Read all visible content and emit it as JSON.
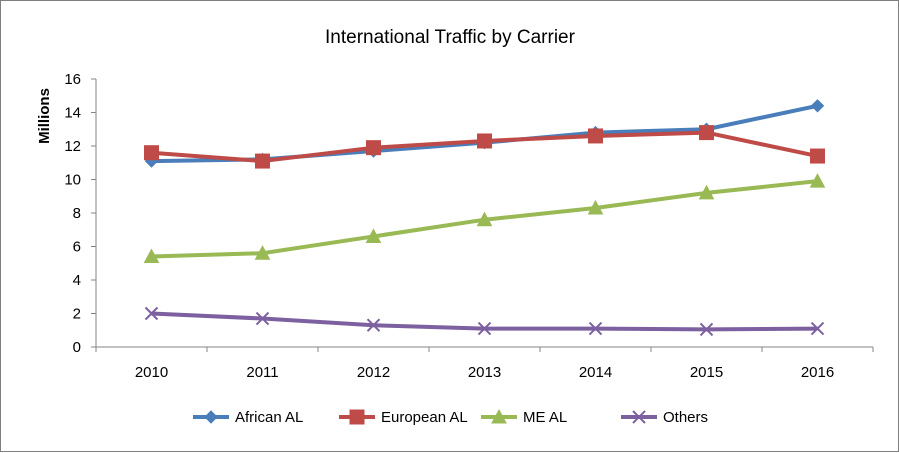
{
  "chart_data": {
    "type": "line",
    "title": "International Traffic by Carrier",
    "xlabel": "",
    "ylabel": "Millions",
    "categories": [
      "2010",
      "2011",
      "2012",
      "2013",
      "2014",
      "2015",
      "2016"
    ],
    "ylim": [
      0,
      16
    ],
    "yticks": [
      "0",
      "2",
      "4",
      "6",
      "8",
      "10",
      "12",
      "14",
      "16"
    ],
    "grid": false,
    "legend_position": "bottom",
    "series": [
      {
        "name": "African AL",
        "color": "#4a7ebb",
        "marker": "diamond",
        "values": [
          11.1,
          11.2,
          11.7,
          12.2,
          12.8,
          13.0,
          14.4
        ]
      },
      {
        "name": "European AL",
        "color": "#be4b48",
        "marker": "square",
        "values": [
          11.6,
          11.1,
          11.9,
          12.3,
          12.6,
          12.8,
          11.4
        ]
      },
      {
        "name": "ME AL",
        "color": "#98b954",
        "marker": "triangle",
        "values": [
          5.4,
          5.6,
          6.6,
          7.6,
          8.3,
          9.2,
          9.9
        ]
      },
      {
        "name": "Others",
        "color": "#7d60a0",
        "marker": "x",
        "values": [
          2.0,
          1.7,
          1.3,
          1.1,
          1.1,
          1.05,
          1.1
        ]
      }
    ]
  }
}
